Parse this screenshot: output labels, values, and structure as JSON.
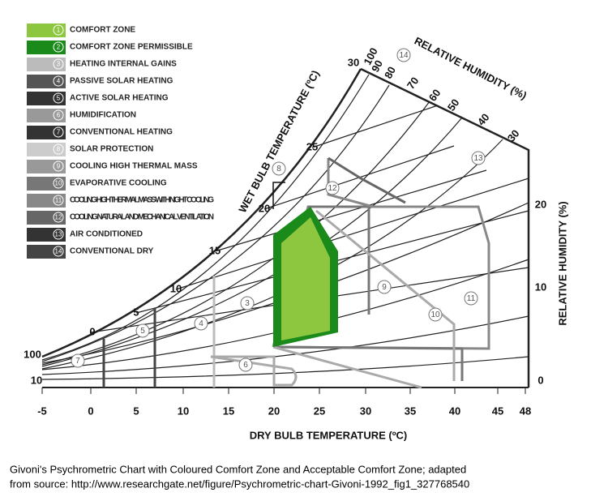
{
  "legend": [
    {
      "number": "1",
      "label": "COMFORT ZONE"
    },
    {
      "number": "2",
      "label": "COMFORT ZONE PERMISSIBLE"
    },
    {
      "number": "3",
      "label": "HEATING INTERNAL GAINS"
    },
    {
      "number": "4",
      "label": "PASSIVE SOLAR HEATING"
    },
    {
      "number": "5",
      "label": "ACTIVE SOLAR HEATING"
    },
    {
      "number": "6",
      "label": "HUMIDIFICATION"
    },
    {
      "number": "7",
      "label": "CONVENTIONAL HEATING"
    },
    {
      "number": "8",
      "label": "SOLAR PROTECTION"
    },
    {
      "number": "9",
      "label": "COOLING HIGH THERMAL MASS"
    },
    {
      "number": "10",
      "label": "EVAPORATIVE COOLING"
    },
    {
      "number": "11",
      "label": "COOLING HIGH THERMAL MASS WITH NIGHT COOLING"
    },
    {
      "number": "12",
      "label": "COOLING NATURAL AND MECHANICAL VENTILATION"
    },
    {
      "number": "13",
      "label": "AIR CONDITIONED"
    },
    {
      "number": "14",
      "label": "CONVENTIONAL DRY"
    }
  ],
  "x_axis": {
    "title": "DRY BULB TEMPERATURE (ºC)",
    "ticks": [
      "-5",
      "0",
      "5",
      "10",
      "15",
      "20",
      "25",
      "30",
      "35",
      "40",
      "45",
      "48"
    ]
  },
  "right_axis": {
    "title": "RELATIVE  HUMIDITY (%)",
    "ticks": [
      "20",
      "10",
      "0"
    ]
  },
  "wet_bulb": {
    "title": "WET BULB TEMPERATURE (ºC)",
    "ticks": [
      "10",
      "100",
      "0",
      "5",
      "10",
      "15",
      "20",
      "25",
      "30"
    ]
  },
  "relative_humidity": {
    "title": "RELATIVE  HUMIDITY (%)",
    "ticks": [
      "100",
      "90",
      "80",
      "70",
      "60",
      "50",
      "40",
      "30"
    ]
  },
  "zone_markers": [
    "3",
    "4",
    "5",
    "6",
    "7",
    "8",
    "9",
    "10",
    "11",
    "12",
    "13",
    "14"
  ],
  "caption": [
    "Givoni's Psychrometric Chart with Coloured Comfort Zone and Acceptable Comfort Zone; adapted",
    "from source: http://www.researchgate.net/figure/Psychrometric-chart-Givoni-1992_fig1_327768540"
  ]
}
